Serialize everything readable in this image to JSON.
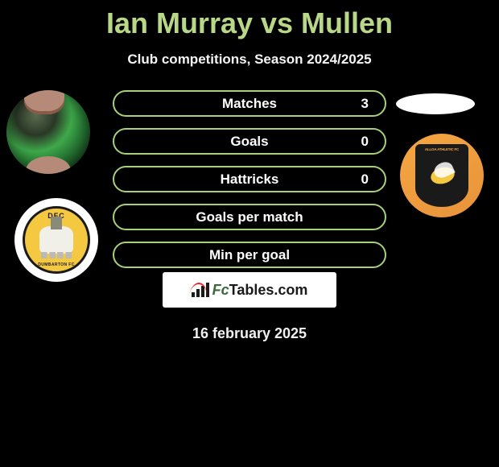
{
  "title": "Ian Murray vs Mullen",
  "subtitle": "Club competitions, Season 2024/2025",
  "date_label": "16 february 2025",
  "watermark": {
    "text_fc": "Fc",
    "text_rest": "Tables.com"
  },
  "colors": {
    "background": "#000000",
    "title_color": "#b8d888",
    "subtitle_color": "#f5f5f5",
    "bar_border": "#a8d078",
    "bar_fill_transparent": "rgba(0,0,0,0)"
  },
  "stat_bars": [
    {
      "label": "Matches",
      "value": "3"
    },
    {
      "label": "Goals",
      "value": "0"
    },
    {
      "label": "Hattricks",
      "value": "0"
    },
    {
      "label": "Goals per match",
      "value": ""
    },
    {
      "label": "Min per goal",
      "value": ""
    }
  ],
  "left_player": {
    "name": "Ian Murray",
    "team": "Dumbarton FC",
    "team_code": "DFC"
  },
  "right_player": {
    "name": "Mullen",
    "team": "Alloa Athletic FC"
  }
}
